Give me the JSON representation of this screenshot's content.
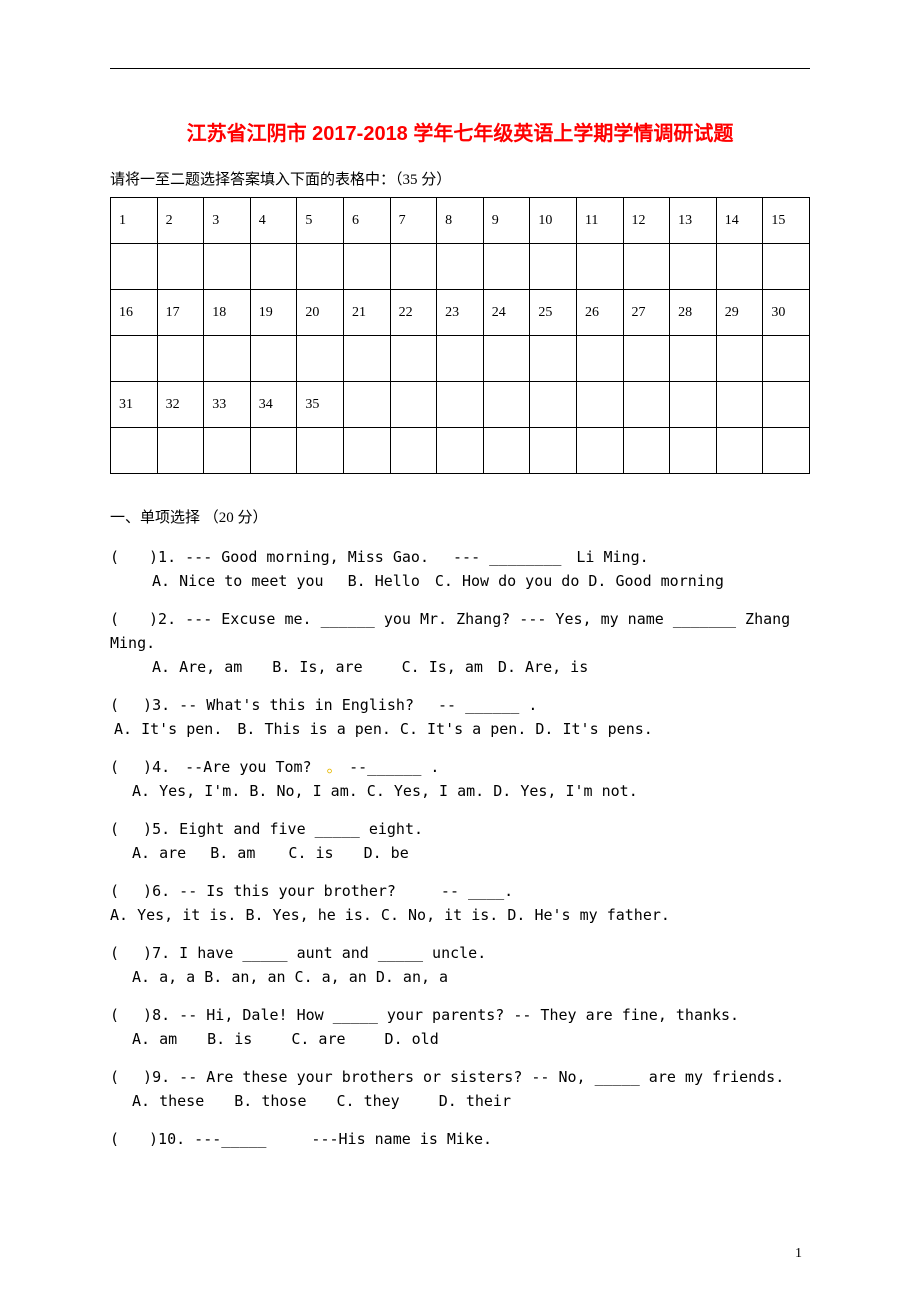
{
  "title": "江苏省江阴市 2017-2018 学年七年级英语上学期学情调研试题",
  "instruction": "请将一至二题选择答案填入下面的表格中：（35 分）",
  "grid": {
    "row1": [
      "1",
      "2",
      "3",
      "4",
      "5",
      "6",
      "7",
      "8",
      "9",
      "10",
      "11",
      "12",
      "13",
      "14",
      "15"
    ],
    "row2": [
      "16",
      "17",
      "18",
      "19",
      "20",
      "21",
      "22",
      "23",
      "24",
      "25",
      "26",
      "27",
      "28",
      "29",
      "30"
    ],
    "row3": [
      "31",
      "32",
      "33",
      "34",
      "35",
      "",
      "",
      "",
      "",
      "",
      "",
      "",
      "",
      "",
      ""
    ]
  },
  "section1_head": "一、单项选择 （20 分）",
  "q1": {
    "stem": "(　　)1. --- Good morning, Miss Gao.　 --- ________　Li Ming.",
    "opts": "A. Nice to meet you　 B. Hello　C. How do you do D. Good  morning"
  },
  "q2": {
    "stem": "(　　)2. --- Excuse me. ______ you Mr. Zhang?  --- Yes, my name _______ Zhang Ming.",
    "opts": "A. Are, am　　B. Is, are　　 C. Is, am　D. Are, is"
  },
  "q3": {
    "stem": "(　 )3. -- What's this in English?　 -- ______ .",
    "opts": "A. It's pen.　B. This is a pen.  C. It's a pen.  D. It's pens."
  },
  "q4": {
    "stem_a": "(　 )4.　--Are you Tom?　",
    "stem_b": "　--______ .",
    "opts": "A. Yes, I'm.  B. No, I am.  C. Yes, I am.  D. Yes, I'm not."
  },
  "q5": {
    "stem": "(　 )5. Eight and five _____ eight.",
    "opts": "A. are　  B. am 　 C. is　　D. be"
  },
  "q6": {
    "stem": "(　 )6. -- Is this your brother?　　　-- ____.",
    "opts": "A. Yes, it is.  B. Yes, he is.  C. No, it is.   D. He's my father."
  },
  "q7": {
    "stem": "(　 )7. I have _____ aunt and _____ uncle.",
    "opts": "A. a, a  B. an, an  C. a, an  D. an, a"
  },
  "q8": {
    "stem": "(　 )8. -- Hi, Dale! How _____ your parents?  -- They are fine, thanks.",
    "opts": "A. am　　B. is　　 C. are　　 D. old"
  },
  "q9": {
    "stem": "(　 )9. -- Are these your brothers or sisters?  -- No, _____ are my friends.",
    "opts": "A. these　　B. those　　C. they　　 D. their"
  },
  "q10": {
    "stem": "(　　)10. ---_____　　　---His name is Mike."
  },
  "page_number": "1"
}
